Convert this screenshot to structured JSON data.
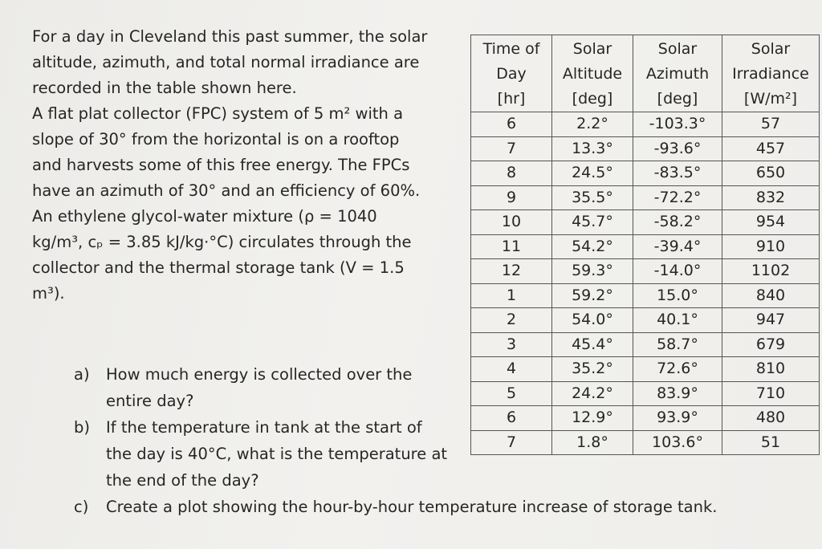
{
  "problem": {
    "lines": [
      "For a day in Cleveland this past summer, the solar",
      "altitude, azimuth, and total normal irradiance are",
      "recorded in the table shown here.",
      "A flat plat collector (FPC) system of 5 m² with a",
      "slope of 30° from the horizontal is on a rooftop",
      "and harvests some of this free energy.  The FPCs",
      "have an azimuth of 30° and an efficiency of 60%.",
      "An ethylene glycol-water mixture (ρ = 1040",
      "kg/m³, cₚ = 3.85 kJ/kg·°C) circulates through the",
      "collector and the thermal storage tank (V = 1.5",
      "m³)."
    ]
  },
  "questions": [
    {
      "label": "a)",
      "lines": [
        "How much energy is collected over the",
        "entire day?"
      ]
    },
    {
      "label": "b)",
      "lines": [
        "If the temperature in tank at the start of",
        "the day is 40°C, what is the temperature at",
        "the end of the day?"
      ]
    },
    {
      "label": "c)",
      "lines": [
        "Create a plot showing the hour-by-hour temperature increase of storage tank."
      ]
    }
  ],
  "table": {
    "headers": [
      [
        "Time of",
        "Day",
        "[hr]"
      ],
      [
        "Solar",
        "Altitude",
        "[deg]"
      ],
      [
        "Solar",
        "Azimuth",
        "[deg]"
      ],
      [
        "Solar",
        "Irradiance",
        "[W/m²]"
      ]
    ],
    "rows": [
      [
        "6",
        "2.2°",
        "-103.3°",
        "57"
      ],
      [
        "7",
        "13.3°",
        "-93.6°",
        "457"
      ],
      [
        "8",
        "24.5°",
        "-83.5°",
        "650"
      ],
      [
        "9",
        "35.5°",
        "-72.2°",
        "832"
      ],
      [
        "10",
        "45.7°",
        "-58.2°",
        "954"
      ],
      [
        "11",
        "54.2°",
        "-39.4°",
        "910"
      ],
      [
        "12",
        "59.3°",
        "-14.0°",
        "1102"
      ],
      [
        "1",
        "59.2°",
        "15.0°",
        "840"
      ],
      [
        "2",
        "54.0°",
        "40.1°",
        "947"
      ],
      [
        "3",
        "45.4°",
        "58.7°",
        "679"
      ],
      [
        "4",
        "35.2°",
        "72.6°",
        "810"
      ],
      [
        "5",
        "24.2°",
        "83.9°",
        "710"
      ],
      [
        "6",
        "12.9°",
        "93.9°",
        "480"
      ],
      [
        "7",
        "1.8°",
        "103.6°",
        "51"
      ]
    ]
  }
}
